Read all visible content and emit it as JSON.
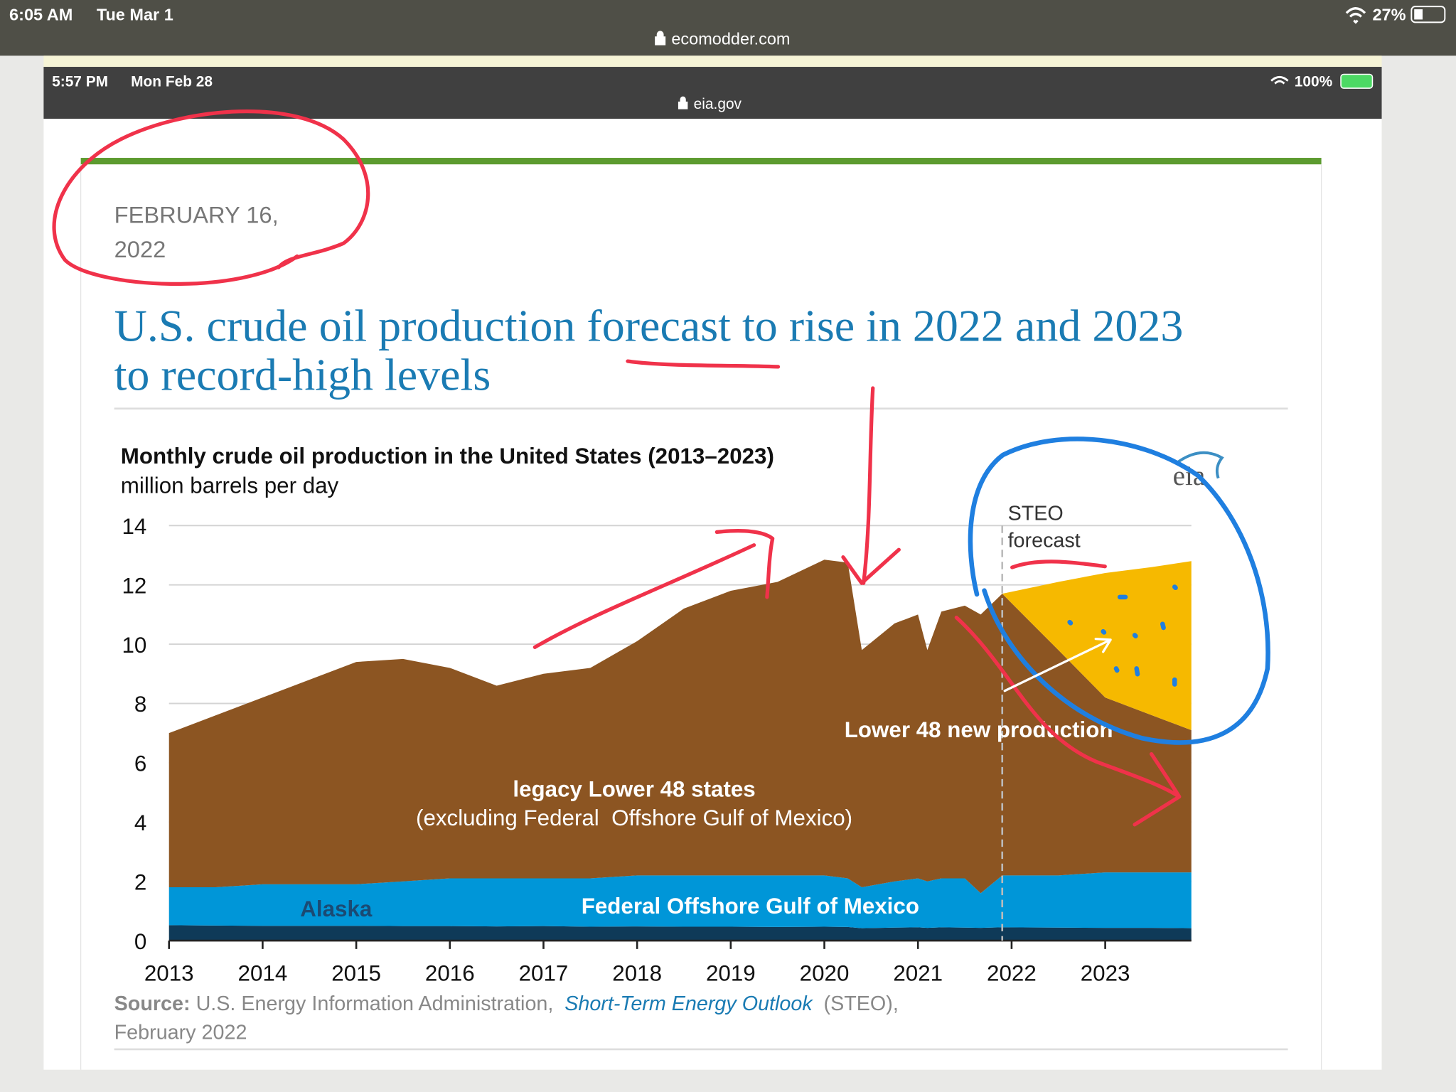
{
  "status_bar": {
    "time": "6:05 AM",
    "date": "Tue Mar 1",
    "url": "ecomodder.com",
    "battery": "27%"
  },
  "inner_status_bar": {
    "time": "5:57 PM",
    "date": "Mon Feb 28",
    "url": "eia.gov",
    "battery": "100%"
  },
  "article": {
    "date_lines": [
      "FEBRUARY 16,",
      "2022"
    ],
    "headline_lines": [
      "U.S. crude oil production forecast to rise in 2022 and 2023",
      "to record-high levels"
    ],
    "source": {
      "label": "Source:",
      "text": "U.S. Energy Information Administration,",
      "link": "Short-Term Energy Outlook",
      "tail": "(STEO),",
      "line2": "February 2022"
    }
  },
  "chart_data": {
    "type": "stacked_area",
    "title": "Monthly crude oil production in the United States (2013–2023)",
    "subtitle": "million barrels per day",
    "logo": "eia",
    "x": [
      2013,
      2013.5,
      2014,
      2014.5,
      2015,
      2015.5,
      2016,
      2016.5,
      2017,
      2017.5,
      2018,
      2018.5,
      2019,
      2019.5,
      2020,
      2020.25,
      2020.4,
      2020.75,
      2021,
      2021.1,
      2021.25,
      2021.5,
      2021.67,
      2021.9,
      2022.5,
      2023,
      2023.5,
      2023.92
    ],
    "series": [
      {
        "name": "Alaska",
        "color": "#0f3a58",
        "values": [
          0.52,
          0.51,
          0.5,
          0.5,
          0.5,
          0.49,
          0.49,
          0.48,
          0.49,
          0.47,
          0.48,
          0.47,
          0.47,
          0.46,
          0.47,
          0.46,
          0.42,
          0.44,
          0.45,
          0.43,
          0.45,
          0.44,
          0.43,
          0.45,
          0.44,
          0.43,
          0.43,
          0.42
        ]
      },
      {
        "name": "Federal Offshore Gulf of Mexico",
        "color": "#0096d8",
        "values": [
          1.28,
          1.29,
          1.4,
          1.4,
          1.4,
          1.51,
          1.61,
          1.62,
          1.61,
          1.63,
          1.72,
          1.73,
          1.73,
          1.74,
          1.73,
          1.64,
          1.38,
          1.56,
          1.65,
          1.57,
          1.65,
          1.66,
          1.17,
          1.75,
          1.76,
          1.87,
          1.87,
          1.88
        ]
      },
      {
        "name": "legacy Lower 48 states",
        "color": "#8c5522",
        "values": [
          5.2,
          5.8,
          6.3,
          6.9,
          7.5,
          7.5,
          7.1,
          6.5,
          6.9,
          7.1,
          7.9,
          9.0,
          9.6,
          9.9,
          10.65,
          10.65,
          8.0,
          8.7,
          8.9,
          7.8,
          9.0,
          9.2,
          9.4,
          9.5,
          7.6,
          5.9,
          5.3,
          4.8
        ]
      },
      {
        "name": "Lower 48 new production",
        "color": "#f6b900",
        "values": [
          0,
          0,
          0,
          0,
          0,
          0,
          0,
          0,
          0,
          0,
          0,
          0,
          0,
          0,
          0,
          0,
          0,
          0,
          0,
          0,
          0,
          0,
          0,
          0,
          2.3,
          4.2,
          5.0,
          5.7
        ]
      }
    ],
    "legacy_note": "(excluding Federal  Offshore Gulf of Mexico)",
    "forecast_start": 2021.9,
    "forecast_label": [
      "STEO",
      "forecast"
    ],
    "xlim": [
      2013,
      2023.92
    ],
    "xticks": [
      2013,
      2014,
      2015,
      2016,
      2017,
      2018,
      2019,
      2020,
      2021,
      2022,
      2023
    ],
    "ylim": [
      0,
      14
    ],
    "yticks": [
      0,
      2,
      4,
      6,
      8,
      10,
      12,
      14
    ],
    "grid": true
  }
}
